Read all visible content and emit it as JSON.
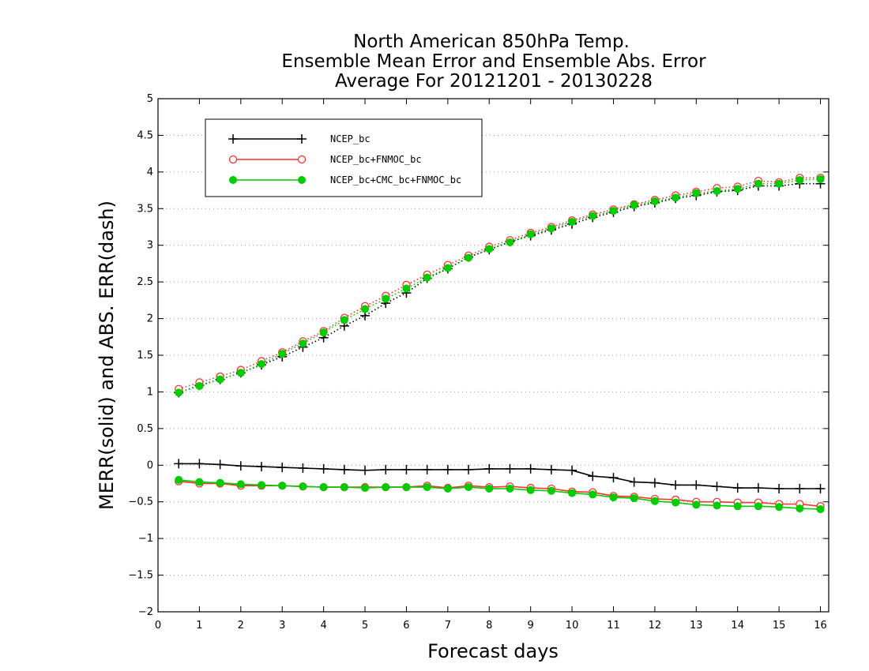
{
  "chart_data": {
    "type": "line",
    "title_lines": [
      "North American 850hPa Temp.",
      "Ensemble Mean Error and Ensemble Abs. Error",
      "Average For 20121201 - 20130228"
    ],
    "xlabel": "Forecast days",
    "ylabel": "MERR(solid) and ABS. ERR(dash)",
    "xlim": [
      0,
      16.2
    ],
    "ylim": [
      -2,
      5
    ],
    "xticks": [
      "0",
      "1",
      "2",
      "3",
      "4",
      "5",
      "6",
      "7",
      "8",
      "9",
      "10",
      "11",
      "12",
      "13",
      "14",
      "15",
      "16"
    ],
    "yticks": [
      "−2",
      "−1.5",
      "−1",
      "−0.5",
      "0",
      "0.5",
      "1",
      "1.5",
      "2",
      "2.5",
      "3",
      "3.5",
      "4",
      "4.5",
      "5"
    ],
    "grid": "horizontal dotted",
    "legend_position": "top-left",
    "x": [
      0.5,
      1,
      1.5,
      2,
      2.5,
      3,
      3.5,
      4,
      4.5,
      5,
      5.5,
      6,
      6.5,
      7,
      7.5,
      8,
      8.5,
      9,
      9.5,
      10,
      10.5,
      11,
      11.5,
      12,
      12.5,
      13,
      13.5,
      14,
      14.5,
      15,
      15.5,
      16
    ],
    "series": [
      {
        "name": "NCEP_bc",
        "color": "#000000",
        "marker": "plus",
        "merr": [
          0.02,
          0.02,
          0.01,
          -0.01,
          -0.02,
          -0.03,
          -0.04,
          -0.05,
          -0.06,
          -0.07,
          -0.06,
          -0.06,
          -0.06,
          -0.06,
          -0.06,
          -0.05,
          -0.05,
          -0.05,
          -0.06,
          -0.07,
          -0.15,
          -0.17,
          -0.23,
          -0.24,
          -0.27,
          -0.27,
          -0.29,
          -0.31,
          -0.31,
          -0.32,
          -0.32,
          -0.32
        ],
        "abs_err": [
          0.99,
          1.09,
          1.17,
          1.26,
          1.37,
          1.48,
          1.61,
          1.74,
          1.9,
          2.04,
          2.21,
          2.35,
          2.55,
          2.68,
          2.84,
          2.94,
          3.05,
          3.13,
          3.21,
          3.29,
          3.38,
          3.45,
          3.53,
          3.58,
          3.64,
          3.68,
          3.73,
          3.75,
          3.81,
          3.81,
          3.84,
          3.84
        ]
      },
      {
        "name": "NCEP_bc+FNMOC_bc",
        "color": "#ff3030",
        "marker": "circle-open",
        "merr": [
          -0.22,
          -0.25,
          -0.25,
          -0.28,
          -0.28,
          -0.28,
          -0.29,
          -0.3,
          -0.3,
          -0.3,
          -0.3,
          -0.3,
          -0.28,
          -0.31,
          -0.28,
          -0.3,
          -0.29,
          -0.31,
          -0.32,
          -0.36,
          -0.37,
          -0.42,
          -0.43,
          -0.46,
          -0.47,
          -0.5,
          -0.5,
          -0.51,
          -0.51,
          -0.53,
          -0.53,
          -0.56
        ],
        "abs_err": [
          1.04,
          1.13,
          1.21,
          1.3,
          1.42,
          1.54,
          1.69,
          1.83,
          2.01,
          2.17,
          2.31,
          2.46,
          2.6,
          2.73,
          2.86,
          2.98,
          3.07,
          3.17,
          3.25,
          3.34,
          3.42,
          3.49,
          3.56,
          3.62,
          3.68,
          3.73,
          3.78,
          3.8,
          3.88,
          3.86,
          3.92,
          3.92
        ]
      },
      {
        "name": "NCEP_bc+CMC_bc+FNMOC_bc",
        "color": "#00cc00",
        "marker": "circle-filled",
        "merr": [
          -0.2,
          -0.23,
          -0.24,
          -0.26,
          -0.27,
          -0.28,
          -0.29,
          -0.3,
          -0.3,
          -0.31,
          -0.3,
          -0.3,
          -0.3,
          -0.32,
          -0.3,
          -0.32,
          -0.32,
          -0.34,
          -0.35,
          -0.38,
          -0.4,
          -0.44,
          -0.45,
          -0.49,
          -0.51,
          -0.54,
          -0.55,
          -0.56,
          -0.56,
          -0.57,
          -0.59,
          -0.6
        ],
        "abs_err": [
          0.99,
          1.08,
          1.17,
          1.26,
          1.38,
          1.52,
          1.66,
          1.81,
          1.98,
          2.13,
          2.27,
          2.41,
          2.56,
          2.69,
          2.83,
          2.95,
          3.04,
          3.15,
          3.23,
          3.32,
          3.4,
          3.47,
          3.55,
          3.6,
          3.65,
          3.71,
          3.74,
          3.77,
          3.84,
          3.84,
          3.89,
          3.9
        ]
      }
    ]
  }
}
